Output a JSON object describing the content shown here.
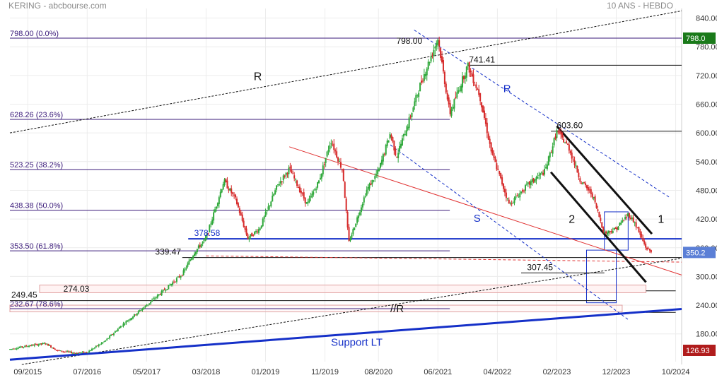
{
  "header": {
    "left": "KERING - abcbourse.com",
    "right": "10 ANS - HEBDO"
  },
  "colors": {
    "up": "#2fa83a",
    "down": "#d62a2a",
    "fib": "#3a1a7a",
    "blue": "#1530c8",
    "black": "#111111",
    "red_line": "#e03030",
    "price_box": "#1a7a1a",
    "last_box": "#5b7fd6",
    "min_box": "#b01c1c",
    "zone": "#e0a0a0"
  },
  "chart_data": {
    "type": "candlestick",
    "title": "",
    "xlabel": "",
    "ylabel": "",
    "x_ticks": [
      "09/2015",
      "07/2016",
      "05/2017",
      "03/2018",
      "01/2019",
      "11/2019",
      "08/2020",
      "06/2021",
      "04/2022",
      "02/2023",
      "12/2023",
      "10/2024"
    ],
    "y_ticks": [
      180,
      240,
      300,
      360,
      420,
      480,
      540,
      600,
      660,
      720,
      780,
      840
    ],
    "y_tick_labels": [
      "180.00",
      "240.00",
      "300.00",
      "360.00",
      "420.00",
      "480.00",
      "540.00",
      "600.00",
      "660.00",
      "720.00",
      "780.00",
      "840.00"
    ],
    "ylim": [
      122,
      860
    ],
    "xlim": [
      "2015-06",
      "2024-11"
    ],
    "price_series": [
      [
        "2015-06",
        148
      ],
      [
        "2015-09",
        155
      ],
      [
        "2015-12",
        160
      ],
      [
        "2016-02",
        145
      ],
      [
        "2016-05",
        140
      ],
      [
        "2016-07",
        142
      ],
      [
        "2016-10",
        165
      ],
      [
        "2017-01",
        200
      ],
      [
        "2017-05",
        240
      ],
      [
        "2017-08",
        272
      ],
      [
        "2017-11",
        305
      ],
      [
        "2018-01",
        350
      ],
      [
        "2018-03",
        380
      ],
      [
        "2018-06",
        500
      ],
      [
        "2018-08",
        460
      ],
      [
        "2018-10",
        380
      ],
      [
        "2018-12",
        400
      ],
      [
        "2019-03",
        490
      ],
      [
        "2019-05",
        525
      ],
      [
        "2019-08",
        450
      ],
      [
        "2019-10",
        500
      ],
      [
        "2019-12",
        585
      ],
      [
        "2020-02",
        520
      ],
      [
        "2020-03",
        370
      ],
      [
        "2020-06",
        480
      ],
      [
        "2020-08",
        520
      ],
      [
        "2020-10",
        600
      ],
      [
        "2020-11",
        550
      ],
      [
        "2021-01",
        620
      ],
      [
        "2021-03",
        700
      ],
      [
        "2021-06",
        798
      ],
      [
        "2021-08",
        640
      ],
      [
        "2021-11",
        741
      ],
      [
        "2022-01",
        680
      ],
      [
        "2022-03",
        560
      ],
      [
        "2022-06",
        450
      ],
      [
        "2022-09",
        490
      ],
      [
        "2022-12",
        520
      ],
      [
        "2023-02",
        603
      ],
      [
        "2023-04",
        570
      ],
      [
        "2023-06",
        500
      ],
      [
        "2023-08",
        470
      ],
      [
        "2023-10",
        390
      ],
      [
        "2023-12",
        400
      ],
      [
        "2024-02",
        430
      ],
      [
        "2024-03",
        415
      ],
      [
        "2024-05",
        360
      ],
      [
        "2024-06",
        350
      ]
    ],
    "fibonacci": [
      {
        "label": "798.00  (0.0%)",
        "value": 798.0
      },
      {
        "label": "628.26  (23.6%)",
        "value": 628.26
      },
      {
        "label": "523.25  (38.2%)",
        "value": 523.25
      },
      {
        "label": "438.38  (50.0%)",
        "value": 438.38
      },
      {
        "label": "353.50  (61.8%)",
        "value": 353.5
      },
      {
        "label": "232.67  (78.6%)",
        "value": 232.67
      }
    ],
    "levels": [
      {
        "label": "798.00",
        "value": 798
      },
      {
        "label": "741.41",
        "value": 741.41
      },
      {
        "label": "603.60",
        "value": 603.6
      },
      {
        "label": "378.58",
        "value": 378.58
      },
      {
        "label": "339.47",
        "value": 339.47
      },
      {
        "label": "307.45",
        "value": 307.45
      },
      {
        "label": "274.03",
        "value": 274.03
      },
      {
        "label": "249.45",
        "value": 249.45
      }
    ],
    "annotations": [
      "R",
      "R",
      "S",
      "//R",
      "1",
      "2",
      "Support LT"
    ],
    "last_price": "350.2",
    "max_price": "798.0",
    "min_price": "126.93"
  }
}
